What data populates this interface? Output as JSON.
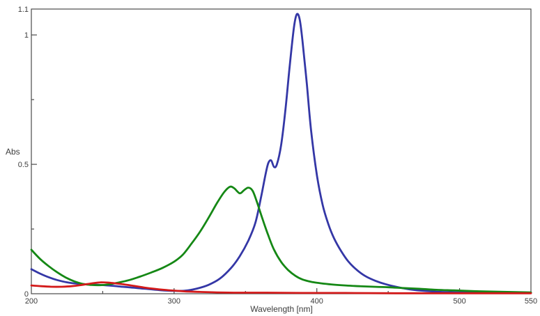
{
  "chart_data": {
    "type": "line",
    "title": "",
    "xlabel": "Wavelength [nm]",
    "ylabel": "Abs",
    "xlim": [
      200,
      550
    ],
    "ylim": [
      0,
      1.1
    ],
    "grid": false,
    "legend": "none",
    "background": "#ffffff",
    "axis_color": "#4a4a4a",
    "text_color": "#3c3c3c",
    "x_axis": {
      "tick_labels": [
        {
          "value": 200,
          "label": "200"
        },
        {
          "value": 300,
          "label": "300"
        },
        {
          "value": 400,
          "label": "400"
        },
        {
          "value": 500,
          "label": "500"
        },
        {
          "value": 550,
          "label": "550"
        }
      ],
      "major_ticks": [
        300,
        400,
        500
      ],
      "minor_ticks": [
        250,
        350,
        450
      ]
    },
    "y_axis": {
      "tick_labels": [
        {
          "value": 0,
          "label": "0"
        },
        {
          "value": 0.5,
          "label": "0.5"
        },
        {
          "value": 1,
          "label": "1"
        },
        {
          "value": 1.1,
          "label": "1.1"
        }
      ],
      "major_ticks": [
        0.5,
        1
      ],
      "minor_ticks": [
        0.25,
        0.75
      ]
    },
    "series": [
      {
        "name": "blue-spectrum",
        "color": "#3437a6",
        "line_width": 2.8,
        "points": [
          [
            200,
            0.095
          ],
          [
            206,
            0.078
          ],
          [
            212,
            0.064
          ],
          [
            218,
            0.053
          ],
          [
            225,
            0.044
          ],
          [
            232,
            0.039
          ],
          [
            240,
            0.036
          ],
          [
            248,
            0.034
          ],
          [
            256,
            0.031
          ],
          [
            264,
            0.027
          ],
          [
            272,
            0.023
          ],
          [
            280,
            0.019
          ],
          [
            290,
            0.014
          ],
          [
            300,
            0.011
          ],
          [
            308,
            0.012
          ],
          [
            316,
            0.02
          ],
          [
            324,
            0.034
          ],
          [
            332,
            0.058
          ],
          [
            340,
            0.1
          ],
          [
            346,
            0.145
          ],
          [
            352,
            0.205
          ],
          [
            357,
            0.275
          ],
          [
            361,
            0.375
          ],
          [
            364,
            0.46
          ],
          [
            366,
            0.505
          ],
          [
            368,
            0.515
          ],
          [
            370,
            0.49
          ],
          [
            372,
            0.5
          ],
          [
            375,
            0.575
          ],
          [
            378,
            0.71
          ],
          [
            381,
            0.88
          ],
          [
            384,
            1.03
          ],
          [
            386,
            1.08
          ],
          [
            388,
            1.06
          ],
          [
            390,
            0.975
          ],
          [
            393,
            0.81
          ],
          [
            396,
            0.63
          ],
          [
            400,
            0.46
          ],
          [
            404,
            0.345
          ],
          [
            408,
            0.27
          ],
          [
            412,
            0.215
          ],
          [
            417,
            0.165
          ],
          [
            422,
            0.125
          ],
          [
            428,
            0.092
          ],
          [
            434,
            0.068
          ],
          [
            441,
            0.05
          ],
          [
            448,
            0.037
          ],
          [
            456,
            0.026
          ],
          [
            465,
            0.017
          ],
          [
            475,
            0.011
          ],
          [
            487,
            0.007
          ],
          [
            500,
            0.005
          ],
          [
            525,
            0.004
          ],
          [
            550,
            0.003
          ]
        ]
      },
      {
        "name": "green-spectrum",
        "color": "#158815",
        "line_width": 2.8,
        "points": [
          [
            200,
            0.17
          ],
          [
            206,
            0.135
          ],
          [
            212,
            0.107
          ],
          [
            218,
            0.083
          ],
          [
            224,
            0.063
          ],
          [
            230,
            0.048
          ],
          [
            236,
            0.038
          ],
          [
            242,
            0.034
          ],
          [
            248,
            0.033
          ],
          [
            254,
            0.036
          ],
          [
            260,
            0.042
          ],
          [
            268,
            0.052
          ],
          [
            276,
            0.066
          ],
          [
            284,
            0.082
          ],
          [
            292,
            0.1
          ],
          [
            300,
            0.124
          ],
          [
            306,
            0.15
          ],
          [
            312,
            0.192
          ],
          [
            318,
            0.238
          ],
          [
            324,
            0.292
          ],
          [
            330,
            0.35
          ],
          [
            335,
            0.392
          ],
          [
            339,
            0.413
          ],
          [
            342,
            0.408
          ],
          [
            346,
            0.388
          ],
          [
            349,
            0.4
          ],
          [
            352,
            0.41
          ],
          [
            355,
            0.398
          ],
          [
            358,
            0.355
          ],
          [
            362,
            0.288
          ],
          [
            366,
            0.225
          ],
          [
            370,
            0.17
          ],
          [
            375,
            0.123
          ],
          [
            380,
            0.091
          ],
          [
            385,
            0.069
          ],
          [
            390,
            0.055
          ],
          [
            396,
            0.046
          ],
          [
            402,
            0.041
          ],
          [
            410,
            0.036
          ],
          [
            420,
            0.032
          ],
          [
            430,
            0.029
          ],
          [
            440,
            0.027
          ],
          [
            450,
            0.025
          ],
          [
            460,
            0.022
          ],
          [
            472,
            0.019
          ],
          [
            484,
            0.015
          ],
          [
            496,
            0.013
          ],
          [
            510,
            0.01
          ],
          [
            525,
            0.008
          ],
          [
            550,
            0.005
          ]
        ]
      },
      {
        "name": "red-spectrum",
        "color": "#d31a1a",
        "line_width": 2.8,
        "points": [
          [
            200,
            0.032
          ],
          [
            207,
            0.029
          ],
          [
            214,
            0.027
          ],
          [
            221,
            0.027
          ],
          [
            228,
            0.029
          ],
          [
            234,
            0.033
          ],
          [
            240,
            0.038
          ],
          [
            245,
            0.042
          ],
          [
            249,
            0.044
          ],
          [
            254,
            0.043
          ],
          [
            259,
            0.04
          ],
          [
            265,
            0.036
          ],
          [
            272,
            0.03
          ],
          [
            279,
            0.024
          ],
          [
            286,
            0.019
          ],
          [
            293,
            0.015
          ],
          [
            300,
            0.012
          ],
          [
            308,
            0.009
          ],
          [
            318,
            0.007
          ],
          [
            330,
            0.005
          ],
          [
            345,
            0.004
          ],
          [
            365,
            0.004
          ],
          [
            390,
            0.003
          ],
          [
            420,
            0.003
          ],
          [
            455,
            0.002
          ],
          [
            500,
            0.002
          ],
          [
            550,
            0.002
          ]
        ]
      }
    ]
  }
}
